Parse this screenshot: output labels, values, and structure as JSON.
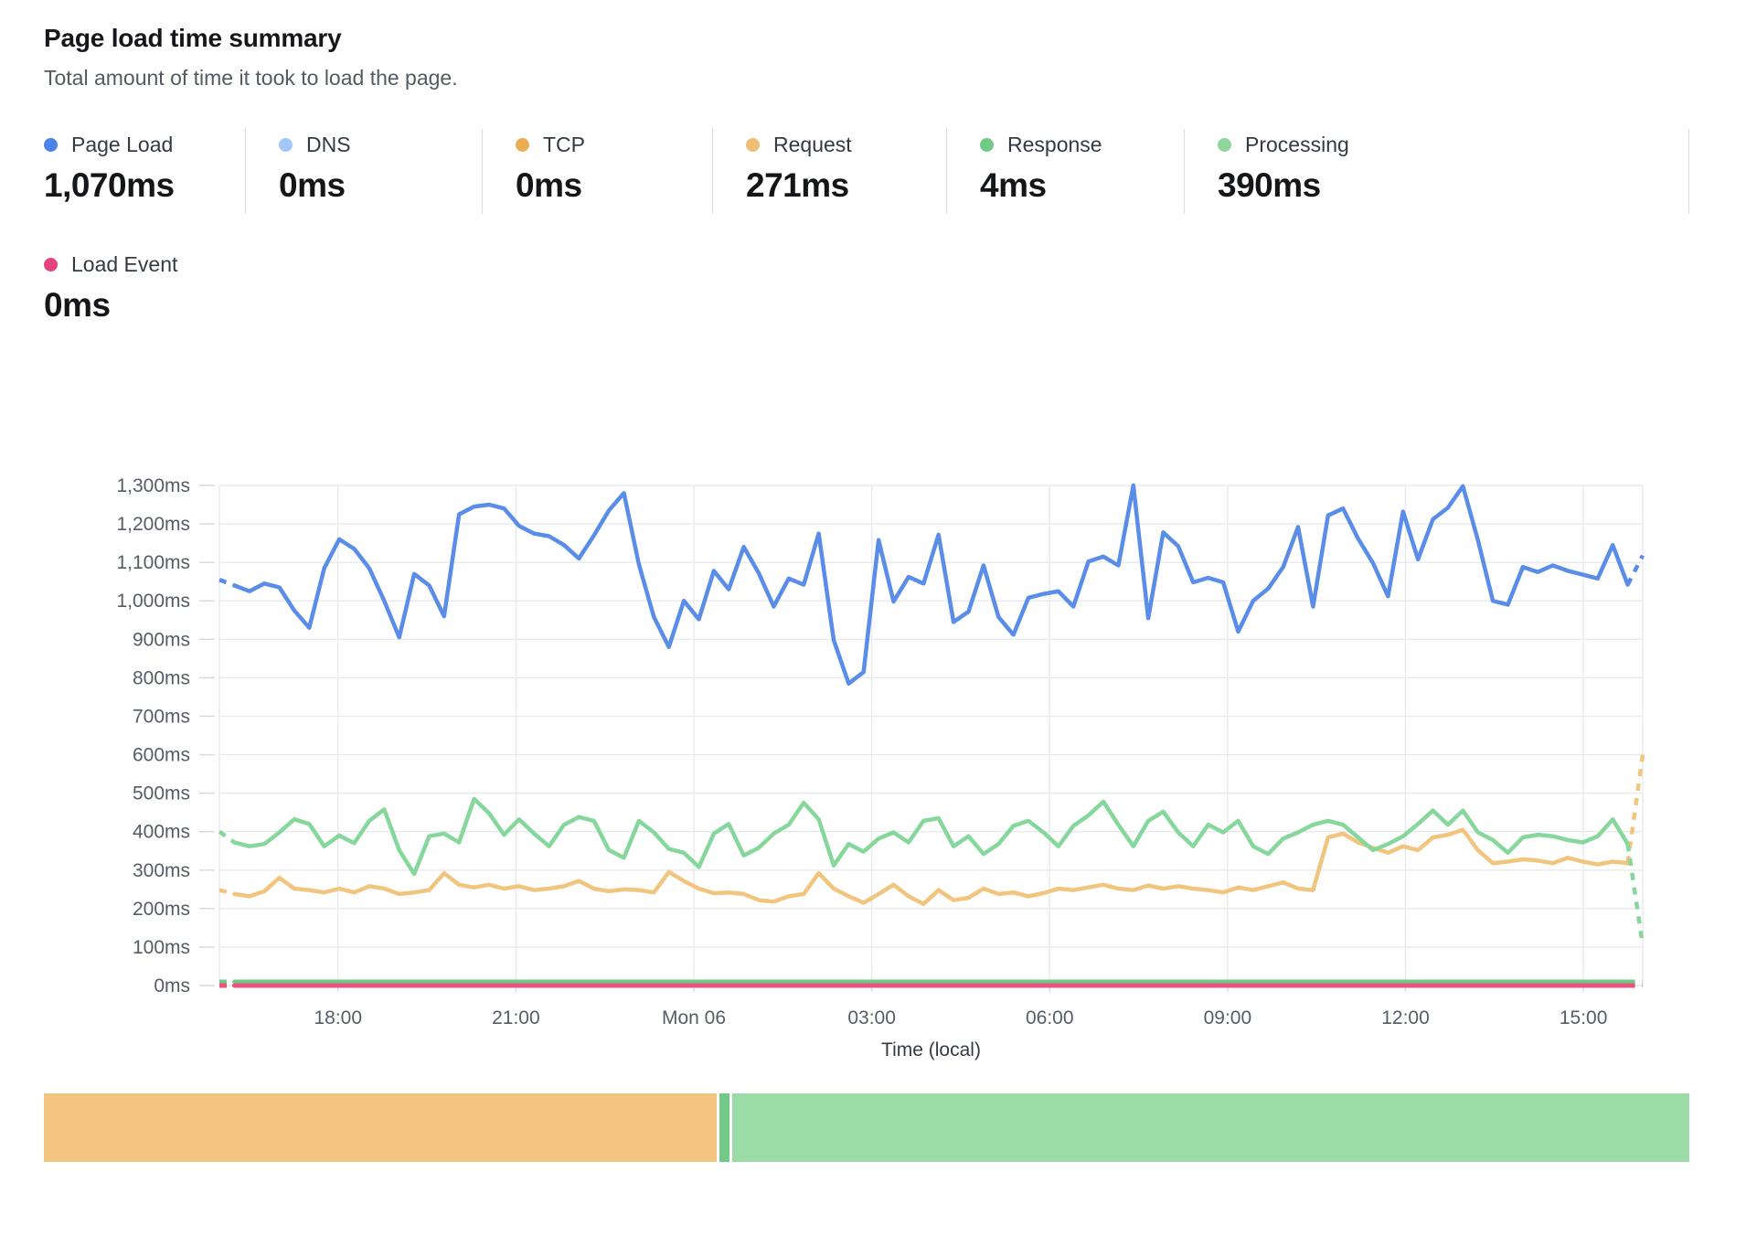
{
  "header": {
    "title": "Page load time summary",
    "subtitle": "Total amount of time it took to load the page."
  },
  "summary_metrics": [
    {
      "label": "Page Load",
      "value": "1,070ms",
      "color": "#4A84E8"
    },
    {
      "label": "DNS",
      "value": "0ms",
      "color": "#A3C7FA"
    },
    {
      "label": "TCP",
      "value": "0ms",
      "color": "#EBAE55"
    },
    {
      "label": "Request",
      "value": "271ms",
      "color": "#EFBE74"
    },
    {
      "label": "Response",
      "value": "4ms",
      "color": "#6FCB86"
    },
    {
      "label": "Processing",
      "value": "390ms",
      "color": "#8ED59E"
    }
  ],
  "load_event_metric": {
    "label": "Load Event",
    "value": "0ms",
    "color": "#E5437E"
  },
  "chart_data": {
    "type": "line",
    "unit": "ms",
    "xlabel": "Time (local)",
    "ylim": [
      0,
      1300
    ],
    "y_step": 100,
    "grid": true,
    "time_window_hours": 24,
    "point_interval_minutes": 15,
    "x_ticks": [
      {
        "label": "18:00",
        "t": 2
      },
      {
        "label": "21:00",
        "t": 5
      },
      {
        "label": "Mon 06",
        "t": 8
      },
      {
        "label": "03:00",
        "t": 11
      },
      {
        "label": "06:00",
        "t": 14
      },
      {
        "label": "09:00",
        "t": 17
      },
      {
        "label": "12:00",
        "t": 20
      },
      {
        "label": "15:00",
        "t": 23
      }
    ],
    "edge_segments_dashed": true,
    "series": [
      {
        "name": "DNS",
        "color": "#A3C7FA",
        "flat": 0,
        "width": 4
      },
      {
        "name": "TCP",
        "color": "#EBAE55",
        "flat": 0,
        "width": 4
      },
      {
        "name": "Request",
        "color": "#F2C57F",
        "width": 4.5,
        "values": [
          248,
          238,
          232,
          245,
          280,
          252,
          248,
          242,
          252,
          242,
          258,
          252,
          238,
          242,
          248,
          292,
          262,
          255,
          262,
          252,
          258,
          248,
          252,
          258,
          272,
          252,
          245,
          250,
          248,
          242,
          295,
          272,
          252,
          240,
          242,
          238,
          222,
          218,
          232,
          238,
          292,
          252,
          232,
          215,
          238,
          262,
          232,
          212,
          248,
          222,
          228,
          252,
          238,
          242,
          232,
          240,
          252,
          248,
          255,
          262,
          252,
          248,
          260,
          252,
          258,
          252,
          248,
          242,
          255,
          248,
          258,
          268,
          252,
          248,
          385,
          395,
          372,
          358,
          345,
          362,
          352,
          385,
          392,
          405,
          352,
          318,
          322,
          328,
          325,
          318,
          332,
          322,
          315,
          322,
          318,
          600
        ]
      },
      {
        "name": "Processing",
        "color": "#86D79C",
        "width": 4.5,
        "values": [
          400,
          372,
          362,
          368,
          398,
          432,
          420,
          362,
          390,
          370,
          428,
          458,
          352,
          290,
          388,
          395,
          372,
          485,
          448,
          392,
          432,
          395,
          362,
          418,
          438,
          428,
          352,
          332,
          428,
          398,
          355,
          345,
          308,
          395,
          420,
          338,
          358,
          395,
          418,
          475,
          432,
          312,
          368,
          348,
          382,
          398,
          372,
          428,
          435,
          362,
          388,
          342,
          368,
          415,
          428,
          398,
          362,
          415,
          442,
          478,
          418,
          362,
          428,
          452,
          398,
          362,
          418,
          398,
          428,
          362,
          342,
          382,
          398,
          418,
          428,
          418,
          385,
          352,
          368,
          388,
          420,
          455,
          418,
          455,
          398,
          378,
          345,
          385,
          392,
          388,
          378,
          372,
          388,
          432,
          368,
          105
        ]
      },
      {
        "name": "Response",
        "color": "#6FCB86",
        "flat": 4,
        "display_value": 10,
        "width": 4.5
      },
      {
        "name": "Load Event",
        "color": "#E8537F",
        "flat": 0,
        "width": 5
      },
      {
        "name": "Page Load",
        "color": "#5A8DE8",
        "width": 4.5,
        "values": [
          1055,
          1040,
          1025,
          1045,
          1035,
          975,
          930,
          1085,
          1160,
          1135,
          1085,
          1000,
          905,
          1070,
          1040,
          960,
          1225,
          1245,
          1250,
          1240,
          1195,
          1175,
          1168,
          1145,
          1110,
          1170,
          1235,
          1280,
          1095,
          958,
          880,
          1000,
          952,
          1078,
          1030,
          1140,
          1072,
          985,
          1058,
          1042,
          1175,
          898,
          785,
          815,
          1158,
          998,
          1062,
          1045,
          1172,
          945,
          972,
          1092,
          958,
          912,
          1008,
          1018,
          1025,
          985,
          1102,
          1115,
          1092,
          1300,
          955,
          1178,
          1142,
          1048,
          1060,
          1048,
          920,
          1000,
          1032,
          1088,
          1192,
          985,
          1222,
          1240,
          1162,
          1098,
          1012,
          1232,
          1108,
          1212,
          1242,
          1298,
          1158,
          1000,
          990,
          1088,
          1075,
          1092,
          1078,
          1068,
          1058,
          1145,
          1042,
          1118
        ]
      }
    ]
  },
  "duration_bar": {
    "segments": [
      {
        "name": "Request",
        "color": "#F2C480",
        "fraction": 0.4105
      },
      {
        "name": "Response",
        "color": "#72CA88",
        "fraction": 0.006
      },
      {
        "name": "Processing",
        "color": "#9BDBA6",
        "fraction": 0.5835
      }
    ]
  },
  "colors": {
    "grid": "#e8eaed",
    "tick": "#d5d8dd",
    "axis_text": "#565c66",
    "axis_title": "#343a44"
  }
}
